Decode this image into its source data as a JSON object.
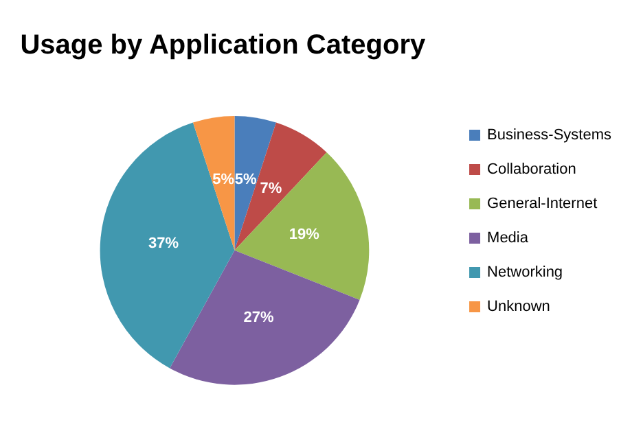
{
  "chart_data": {
    "type": "pie",
    "title": "Usage by Application Category",
    "categories": [
      "Business-Systems",
      "Collaboration",
      "General-Internet",
      "Media",
      "Networking",
      "Unknown"
    ],
    "values": [
      5,
      7,
      19,
      27,
      37,
      5
    ],
    "colors": [
      "#4a7ebb",
      "#be4b48",
      "#98b954",
      "#7d60a0",
      "#4198af",
      "#f79646"
    ],
    "value_labels": [
      "5%",
      "7%",
      "19%",
      "27%",
      "37%",
      "5%"
    ],
    "legend": "right"
  }
}
